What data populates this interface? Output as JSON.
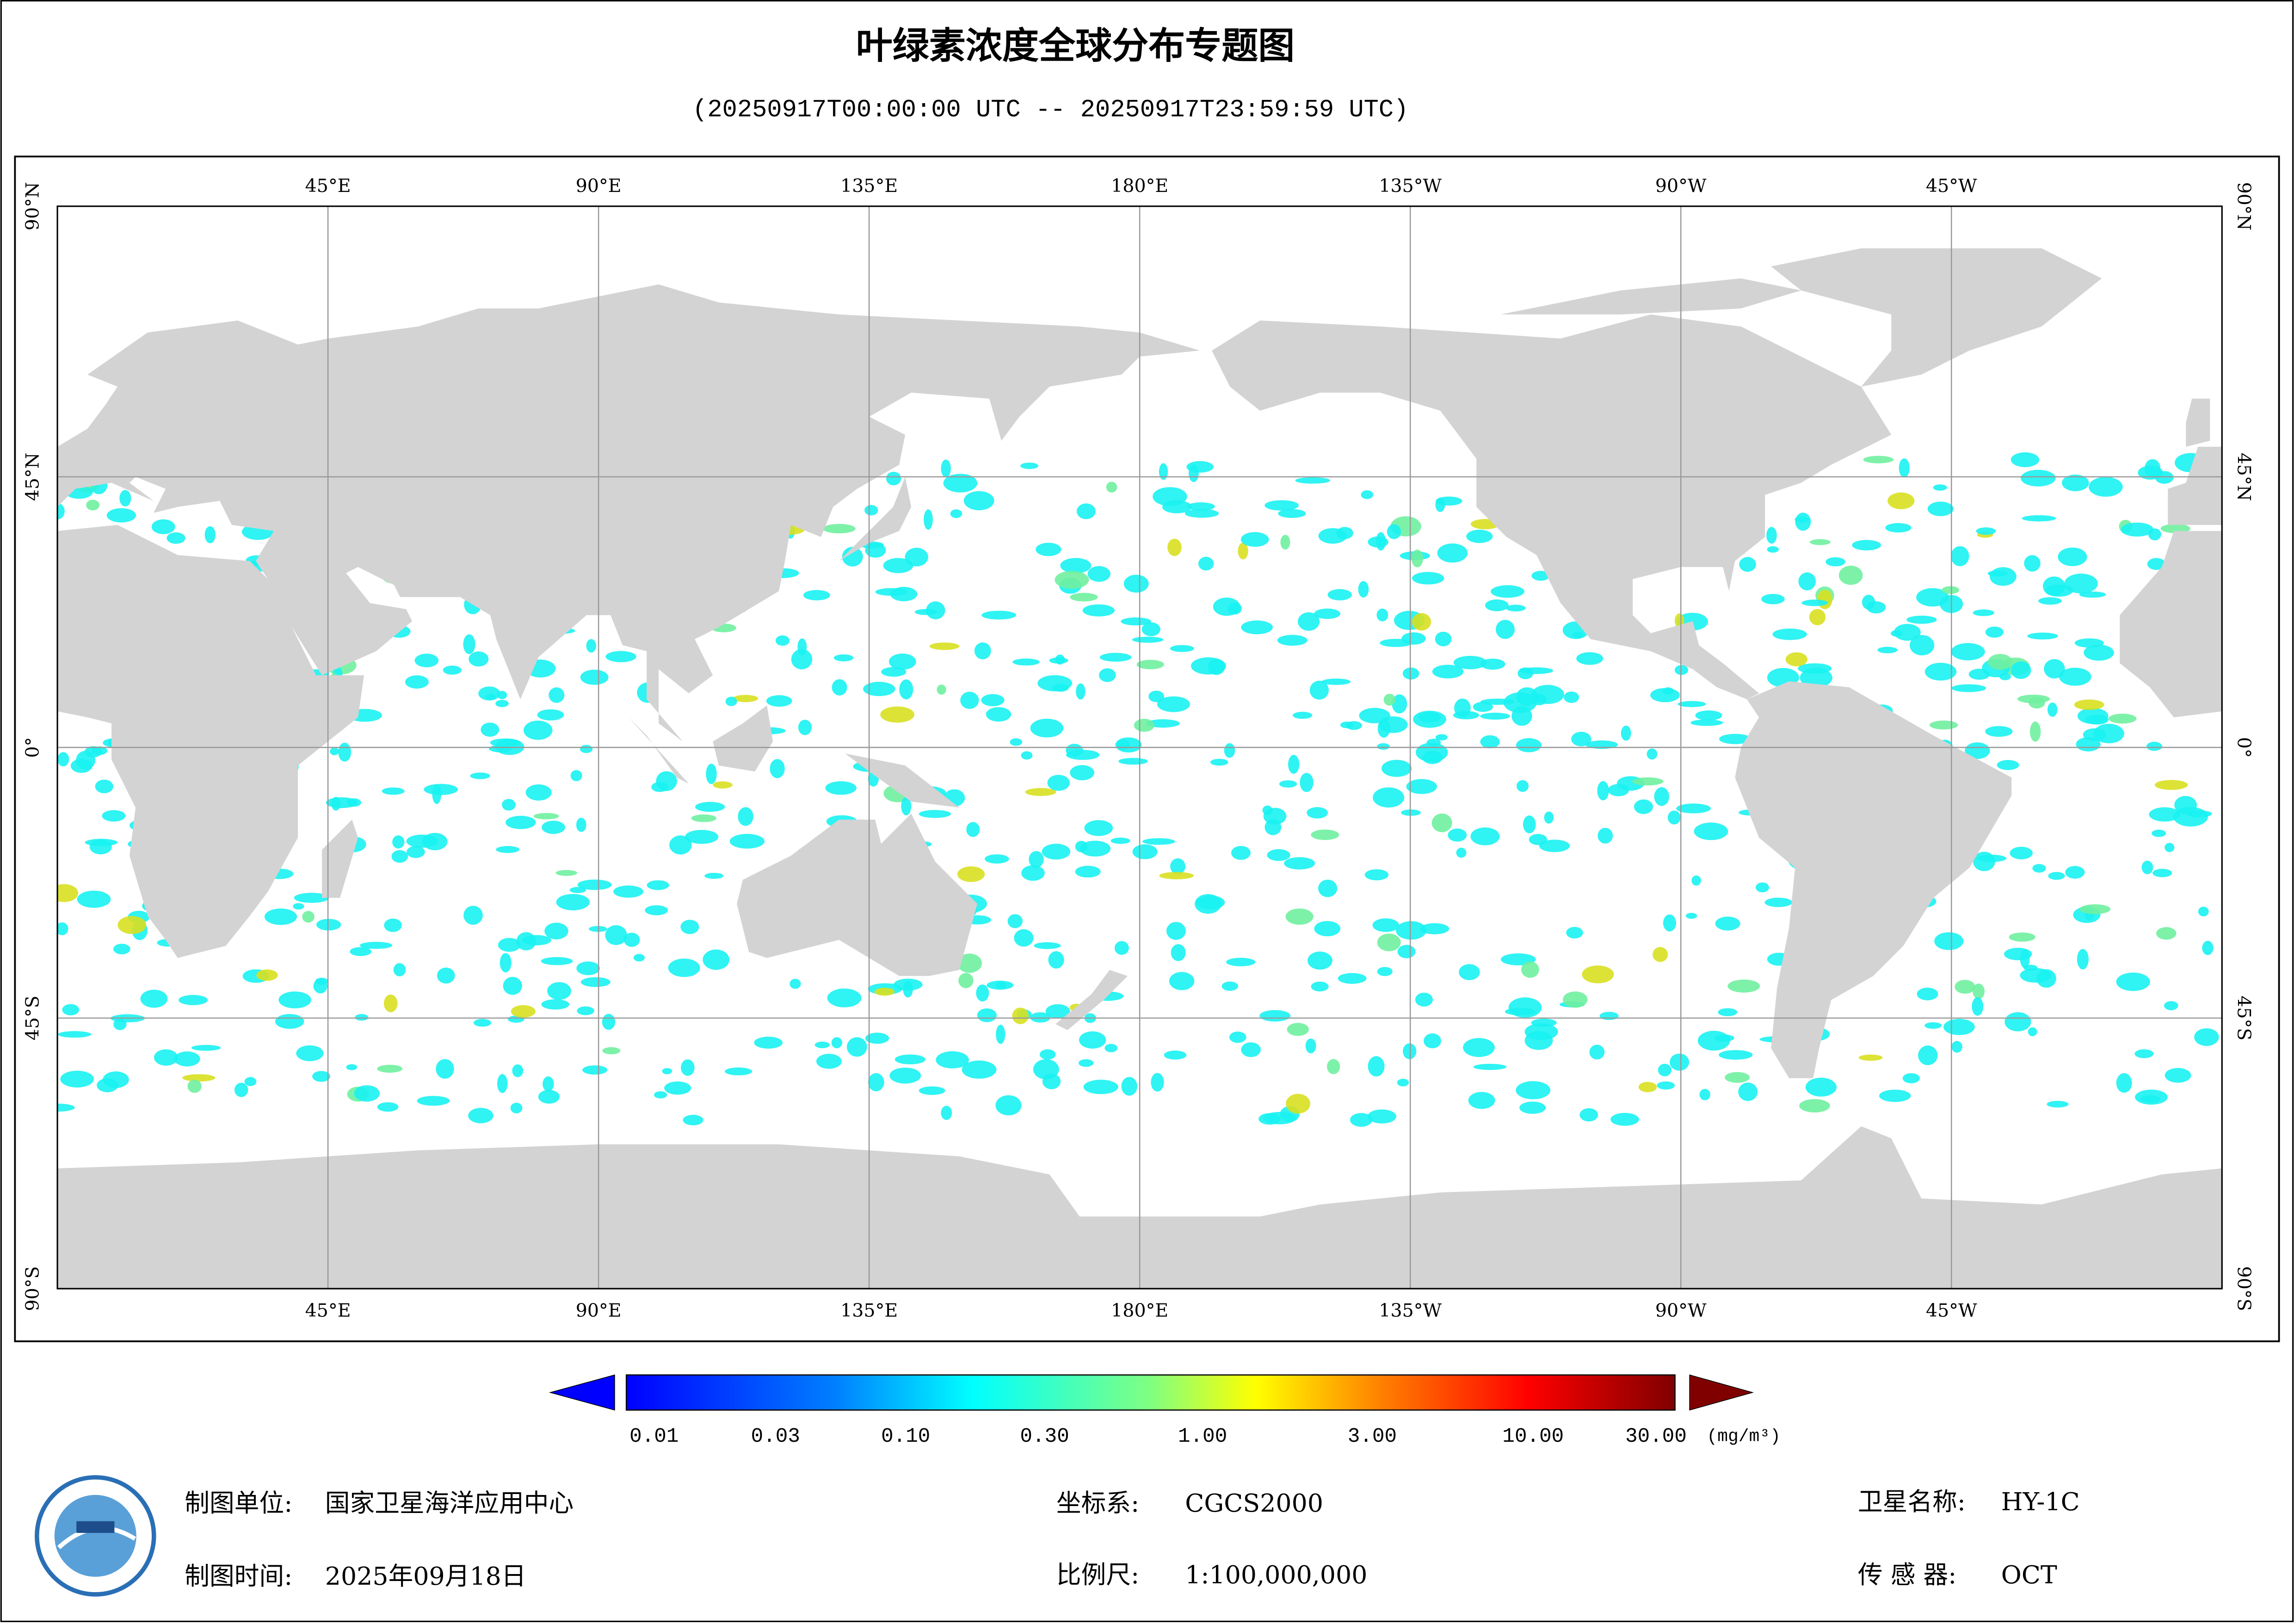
{
  "title": "叶绿素浓度全球分布专题图",
  "subtitle": "(20250917T00:00:00 UTC -- 20250917T23:59:59 UTC)",
  "map": {
    "longitude_labels": [
      "45°E",
      "90°E",
      "135°E",
      "180°E",
      "135°W",
      "90°W",
      "45°W"
    ],
    "latitude_labels": [
      "90°N",
      "45°N",
      "0°",
      "45°S",
      "90°S"
    ]
  },
  "legend": {
    "labels": [
      "0.01",
      "0.03",
      "0.10",
      "0.30",
      "1.00",
      "3.00",
      "10.00",
      "30.00"
    ],
    "unit": "(mg/m³)"
  },
  "footer": {
    "unit_label": "制图单位:",
    "unit": "国家卫星海洋应用中心",
    "date_label": "制图时间:",
    "date": "2025年09月18日",
    "crs_label": "坐标系:",
    "crs": "CGCS2000",
    "scale_label": "比例尺:",
    "scale": "1:100,000,000",
    "satellite_label": "卫星名称:",
    "satellite": "HY-1C",
    "sensor_label": "传 感 器:",
    "sensor": "OCT"
  }
}
